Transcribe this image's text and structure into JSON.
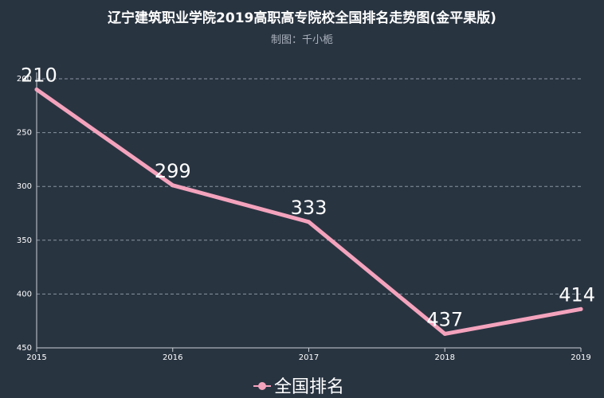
{
  "chart_data": {
    "type": "line",
    "title": "辽宁建筑职业学院2019高职高专院校全国排名走势图(金平果版)",
    "subtitle": "制图：千小栀",
    "x": [
      "2015",
      "2016",
      "2017",
      "2018",
      "2019"
    ],
    "series": [
      {
        "name": "全国排名",
        "values": [
          210,
          299,
          333,
          437,
          414
        ]
      }
    ],
    "y_ticks": [
      "200",
      "250",
      "300",
      "350",
      "400",
      "450"
    ],
    "ylim": [
      200,
      450
    ],
    "y_inverted": true,
    "grid": true,
    "legend_position": "bottom-center",
    "colors": {
      "background": "#293441",
      "line": "#f4a3bd",
      "grid": "#8a95a3",
      "axis": "#c9cfd6"
    }
  }
}
